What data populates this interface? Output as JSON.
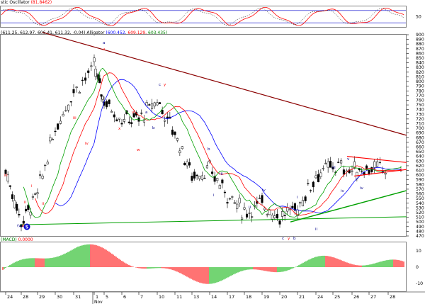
{
  "panels": {
    "oscillator": {
      "label": "stic Oscillator",
      "value": "(81.8462)",
      "axis": {
        "ticks": [
          50
        ],
        "range": [
          0,
          100
        ],
        "levels": [
          80,
          20
        ]
      }
    },
    "price": {
      "header": "(611.25, 612.97, 606.41, 611.32, -0.04)",
      "indicator_name": "Alligator",
      "indicator_values": [
        "(600.452,",
        "609.129,",
        "603.435)"
      ],
      "axis": {
        "range": [
          470,
          900
        ],
        "ticks": [
          900,
          890,
          880,
          870,
          860,
          850,
          840,
          830,
          820,
          810,
          800,
          790,
          780,
          770,
          760,
          750,
          740,
          730,
          720,
          710,
          700,
          690,
          680,
          670,
          660,
          650,
          640,
          630,
          620,
          610,
          600,
          590,
          580,
          570,
          560,
          550,
          540,
          530,
          520,
          510,
          500,
          490,
          480,
          470
        ]
      },
      "marker": "S"
    },
    "macd": {
      "label": "(MACD)",
      "value": "0.0000",
      "axis": {
        "ticks": [
          10,
          0,
          -10
        ]
      }
    }
  },
  "x_axis": {
    "ticks": [
      "24",
      "28",
      "29",
      "30",
      "31",
      "1",
      "5",
      "6",
      "7",
      "10",
      "11",
      "13",
      "14",
      "17",
      "18",
      "19",
      "20",
      "21",
      "24",
      "25",
      "26",
      "27",
      "28"
    ],
    "month_label": "Nov"
  },
  "wave_labels": [
    "a",
    "v",
    "iii",
    "iv",
    "i",
    "ii",
    "c",
    "y",
    "w",
    "x",
    "b",
    "a",
    "v",
    "iii",
    "ii",
    "b",
    "i",
    "iv",
    "ii",
    "iii",
    "c",
    "y",
    "b",
    "i",
    "ii",
    "iv",
    "iii",
    "v",
    "iv",
    "v",
    "(v)",
    "iii",
    "i"
  ],
  "colors": {
    "up_candle": "#ffffff",
    "down_candle": "#000000",
    "jaw": "#0000ff",
    "teeth": "#ff0000",
    "lips": "#00a000",
    "trend_down": "#8b0000",
    "trend_green": "#00a000",
    "trend_red": "#ff0000",
    "macd_up": "#00b000",
    "macd_down": "#ff0000",
    "osc_line": "#ff0000",
    "osc_level": "#0000cc"
  },
  "chart_data": {
    "type": "candlestick",
    "title": "",
    "categories": [
      "24",
      "28",
      "29",
      "30",
      "31",
      "1",
      "5",
      "6",
      "7",
      "10",
      "11",
      "13",
      "14",
      "17",
      "18",
      "19",
      "20",
      "21",
      "24",
      "25",
      "26",
      "27",
      "28"
    ],
    "ylim": [
      470,
      900
    ],
    "daily_close_estimates": [
      610,
      500,
      560,
      700,
      780,
      830,
      760,
      720,
      720,
      760,
      690,
      600,
      610,
      560,
      520,
      540,
      510,
      530,
      600,
      620,
      610,
      615,
      611
    ],
    "last_bar": {
      "open": 611.25,
      "high": 612.97,
      "low": 606.41,
      "close": 611.32,
      "change": -0.04
    },
    "alligator": {
      "jaw": 600.452,
      "teeth": 609.129,
      "lips": 603.435
    },
    "oscillator_last": 81.8462,
    "grid": false
  }
}
